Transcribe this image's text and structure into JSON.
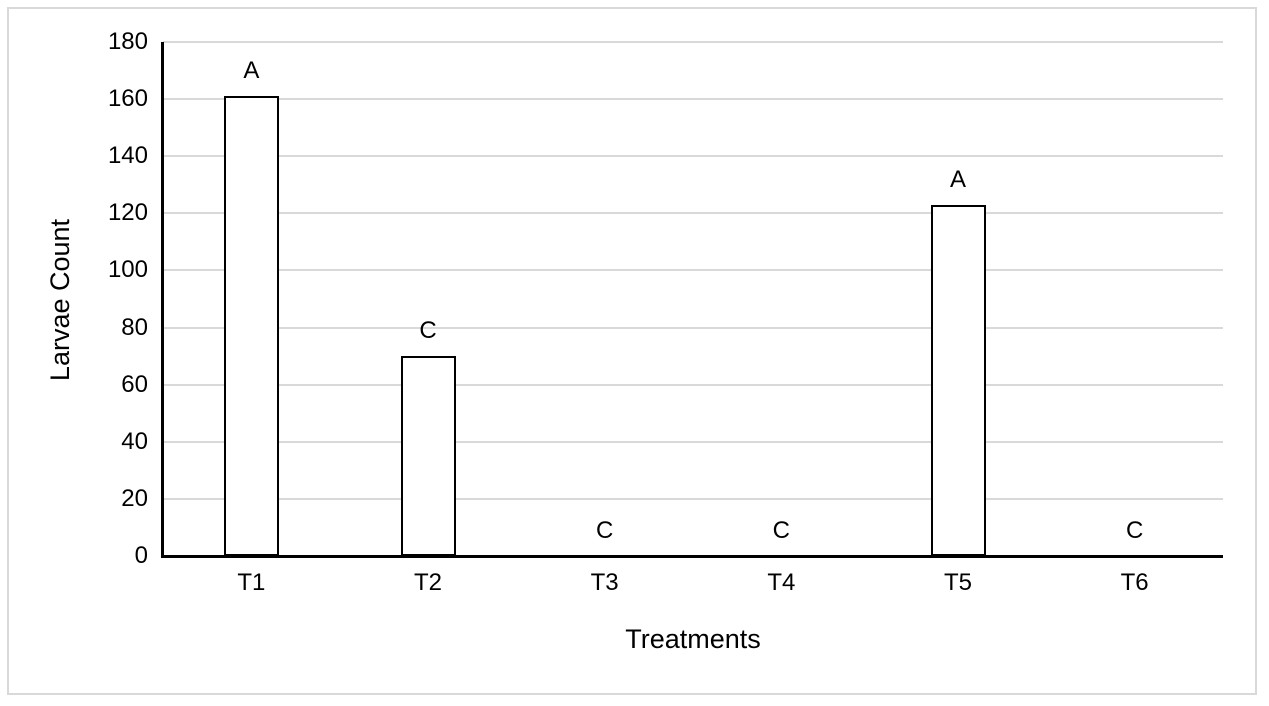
{
  "chart_data": {
    "type": "bar",
    "categories": [
      "T1",
      "T2",
      "T3",
      "T4",
      "T5",
      "T6"
    ],
    "values": [
      161,
      70,
      0,
      0,
      123,
      0
    ],
    "bar_labels": [
      "A",
      "C",
      "C",
      "C",
      "A",
      "C"
    ],
    "title": "",
    "xlabel": "Treatments",
    "ylabel": "Larvae Count",
    "ylim": [
      0,
      180
    ],
    "yticks": [
      0,
      20,
      40,
      60,
      80,
      100,
      120,
      140,
      160,
      180
    ],
    "grid": true,
    "legend_position": "none",
    "colors": {
      "bar_fill": "#ffffff",
      "bar_border": "#000000",
      "gridline": "#d9d9d9",
      "axis": "#000000",
      "text": "#000000",
      "frame_border": "#d9d9d9",
      "background": "#ffffff"
    }
  }
}
